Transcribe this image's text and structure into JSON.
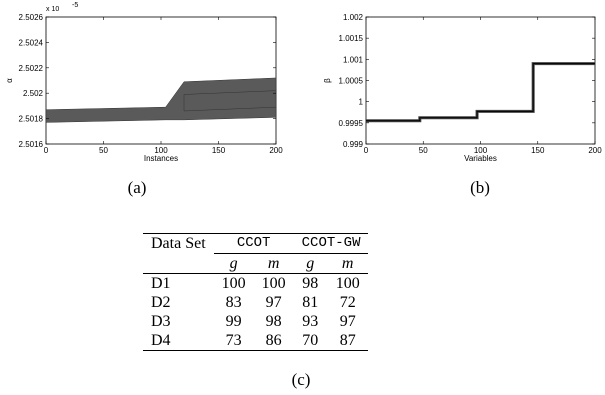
{
  "chart_data": [
    {
      "type": "area",
      "caption": "(a)",
      "xlabel": "Instances",
      "ylabel": "α",
      "exponent_label": "x 10",
      "exponent_power": "-5",
      "xlim": [
        0,
        200
      ],
      "ylim": [
        2.5016,
        2.5026
      ],
      "x_ticks": [
        "0",
        "50",
        "100",
        "150",
        "200"
      ],
      "y_ticks": [
        "2.5016",
        "2.5018",
        "2.502",
        "2.5022",
        "2.5024",
        "2.5026"
      ],
      "band_color": "#5a5a5a",
      "bands": [
        {
          "x": [
            0,
            104,
            120,
            200
          ],
          "upper": [
            2.50187,
            2.50189,
            2.50209,
            2.50212
          ],
          "lower": [
            2.50177,
            2.50179,
            2.50179,
            2.50181
          ]
        },
        {
          "x": [
            120,
            200
          ],
          "upper": [
            2.50199,
            2.50202
          ],
          "lower": [
            2.50186,
            2.50189
          ]
        }
      ]
    },
    {
      "type": "line",
      "caption": "(b)",
      "xlabel": "Variables",
      "ylabel": "β",
      "xlim": [
        0,
        200
      ],
      "ylim": [
        0.999,
        1.002
      ],
      "x_ticks": [
        "0",
        "50",
        "100",
        "150",
        "200"
      ],
      "y_ticks": [
        "0.999",
        "0.9995",
        "1",
        "1.0005",
        "1.001",
        "1.0015",
        "1.002"
      ],
      "series": [
        {
          "x": [
            0,
            47,
            47,
            97,
            97,
            146,
            146,
            200
          ],
          "y": [
            0.99955,
            0.99955,
            0.99962,
            0.99962,
            0.99977,
            0.99977,
            1.0009,
            1.0009
          ]
        }
      ]
    }
  ],
  "table": {
    "caption": "(c)",
    "header_first": "Data Set",
    "methods": [
      "CCOT",
      "CCOT-GW"
    ],
    "subheaders": [
      "g",
      "m",
      "g",
      "m"
    ],
    "rows": [
      {
        "name": "D1",
        "cells": [
          {
            "v": "100",
            "b": true
          },
          {
            "v": "100",
            "b": true
          },
          {
            "v": "98",
            "b": false
          },
          {
            "v": "100",
            "b": false
          }
        ]
      },
      {
        "name": "D2",
        "cells": [
          {
            "v": "83",
            "b": true
          },
          {
            "v": "97",
            "b": true
          },
          {
            "v": "81",
            "b": false
          },
          {
            "v": "72",
            "b": false
          }
        ]
      },
      {
        "name": "D3",
        "cells": [
          {
            "v": "99",
            "b": true
          },
          {
            "v": "98",
            "b": true
          },
          {
            "v": "93",
            "b": false
          },
          {
            "v": "97",
            "b": false
          }
        ]
      },
      {
        "name": "D4",
        "cells": [
          {
            "v": "73",
            "b": true
          },
          {
            "v": "86",
            "b": false
          },
          {
            "v": "70",
            "b": false
          },
          {
            "v": "87",
            "b": true
          }
        ]
      }
    ]
  }
}
